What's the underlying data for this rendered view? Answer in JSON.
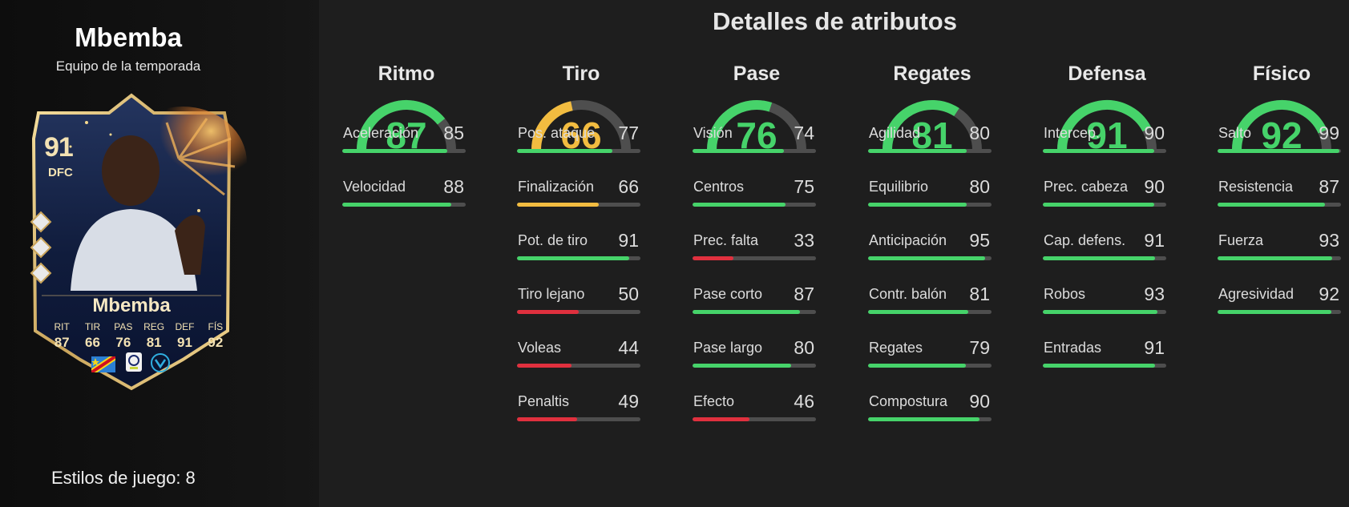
{
  "player": {
    "name": "Mbemba",
    "card_type": "Equipo de la temporada",
    "playstyles": "Estilos de juego: 8"
  },
  "card": {
    "rating": "91",
    "position": "DFC",
    "name": "Mbemba",
    "stats": [
      {
        "label": "RIT",
        "value": "87"
      },
      {
        "label": "TIR",
        "value": "66"
      },
      {
        "label": "PAS",
        "value": "76"
      },
      {
        "label": "REG",
        "value": "81"
      },
      {
        "label": "DEF",
        "value": "91"
      },
      {
        "label": "FÍS",
        "value": "92"
      }
    ]
  },
  "details_title": "Detalles de atributos",
  "colors": {
    "high": "#46d36a",
    "mid": "#f2bc40",
    "low": "#e0303e",
    "track": "#4e4e4e"
  },
  "categories": [
    {
      "name": "Ritmo",
      "value": 87,
      "attributes": [
        {
          "label": "Aceleración",
          "value": 85
        },
        {
          "label": "Velocidad",
          "value": 88
        }
      ]
    },
    {
      "name": "Tiro",
      "value": 66,
      "attributes": [
        {
          "label": "Pos. ataque",
          "value": 77
        },
        {
          "label": "Finalización",
          "value": 66
        },
        {
          "label": "Pot. de tiro",
          "value": 91
        },
        {
          "label": "Tiro lejano",
          "value": 50
        },
        {
          "label": "Voleas",
          "value": 44
        },
        {
          "label": "Penaltis",
          "value": 49
        }
      ]
    },
    {
      "name": "Pase",
      "value": 76,
      "attributes": [
        {
          "label": "Visión",
          "value": 74
        },
        {
          "label": "Centros",
          "value": 75
        },
        {
          "label": "Prec. falta",
          "value": 33
        },
        {
          "label": "Pase corto",
          "value": 87
        },
        {
          "label": "Pase largo",
          "value": 80
        },
        {
          "label": "Efecto",
          "value": 46
        }
      ]
    },
    {
      "name": "Regates",
      "value": 81,
      "attributes": [
        {
          "label": "Agilidad",
          "value": 80
        },
        {
          "label": "Equilibrio",
          "value": 80
        },
        {
          "label": "Anticipación",
          "value": 95
        },
        {
          "label": "Contr. balón",
          "value": 81
        },
        {
          "label": "Regates",
          "value": 79
        },
        {
          "label": "Compostura",
          "value": 90
        }
      ]
    },
    {
      "name": "Defensa",
      "value": 91,
      "attributes": [
        {
          "label": "Intercep.",
          "value": 90
        },
        {
          "label": "Prec. cabeza",
          "value": 90
        },
        {
          "label": "Cap. defens.",
          "value": 91
        },
        {
          "label": "Robos",
          "value": 93
        },
        {
          "label": "Entradas",
          "value": 91
        }
      ]
    },
    {
      "name": "Físico",
      "value": 92,
      "attributes": [
        {
          "label": "Salto",
          "value": 99
        },
        {
          "label": "Resistencia",
          "value": 87
        },
        {
          "label": "Fuerza",
          "value": 93
        },
        {
          "label": "Agresividad",
          "value": 92
        }
      ]
    }
  ]
}
